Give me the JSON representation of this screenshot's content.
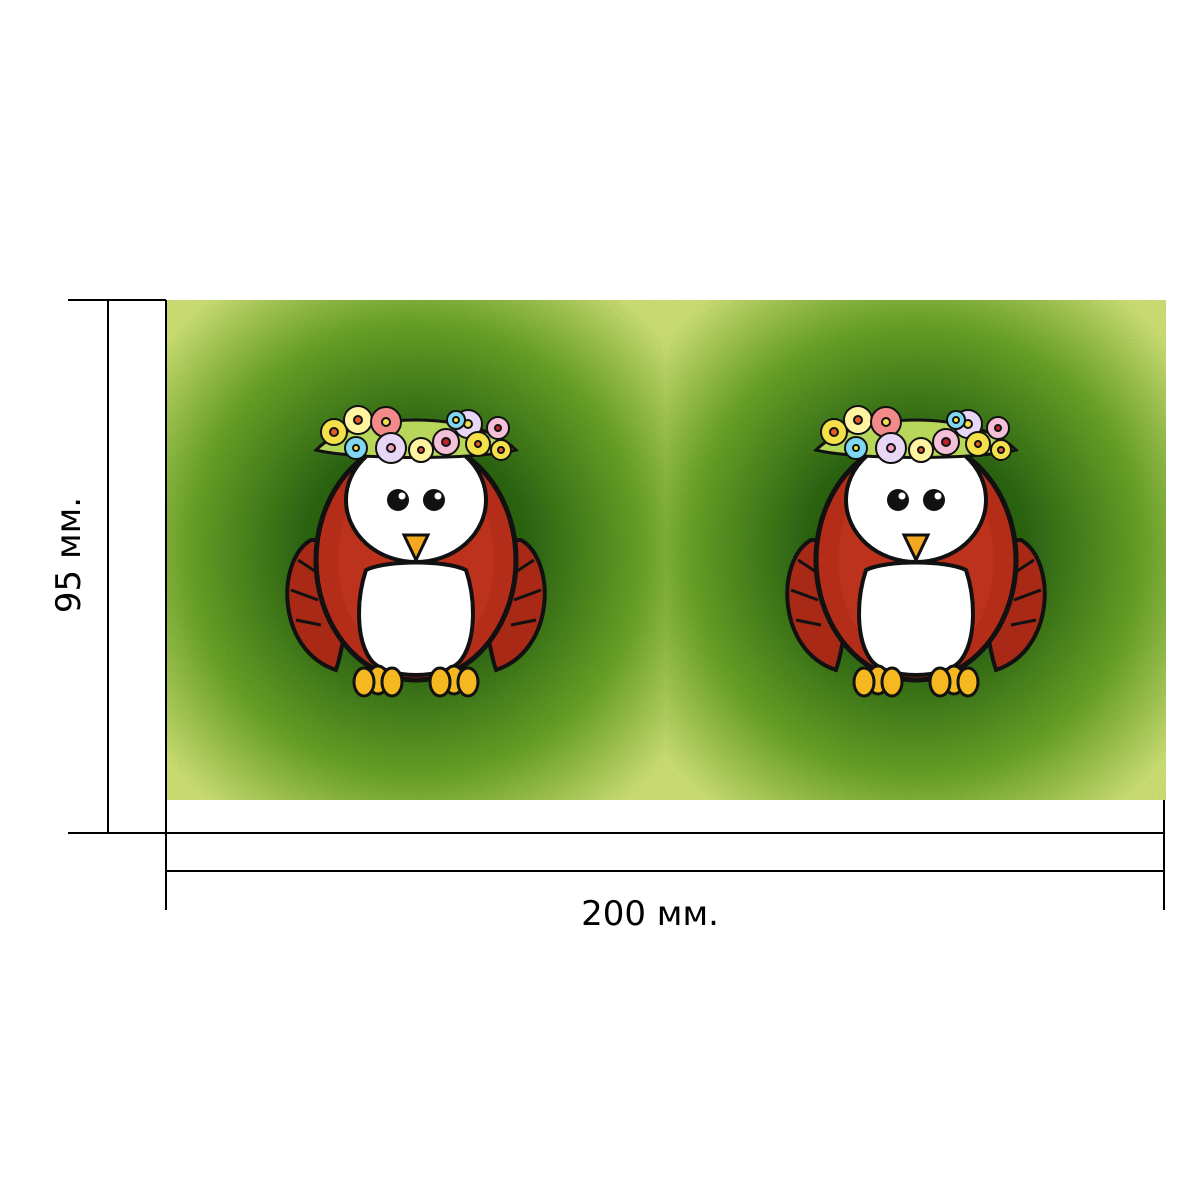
{
  "dimensions": {
    "height_label": "95 мм.",
    "width_label": "200 мм."
  },
  "design": {
    "panel_count": 2,
    "background_colors": {
      "light": "#d6e77a",
      "mid": "#6fa82a",
      "dark": "#1c4a0a"
    },
    "owl_colors": {
      "body": "#b32d19",
      "body_dark": "#7a1a0c",
      "belly": "#ffffff",
      "beak": "#f3a81e",
      "feet": "#f5b820",
      "outline": "#111111"
    },
    "flower_colors": [
      "#f4e14a",
      "#e7d6f5",
      "#7fd7f2",
      "#f28a8a",
      "#fff4a0",
      "#f3c0d8"
    ]
  },
  "icons": {
    "panel_left": "owl-with-flower-crown",
    "panel_right": "owl-with-flower-crown"
  }
}
